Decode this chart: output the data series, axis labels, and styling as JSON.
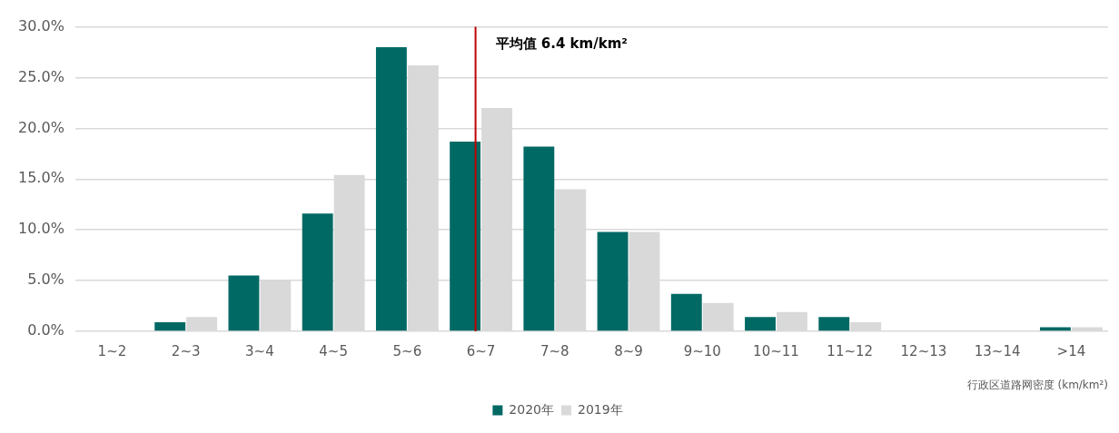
{
  "chart_data": {
    "type": "bar",
    "xlabel": "行政区道路网密度 (km/km²)",
    "categories": [
      "1~2",
      "2~3",
      "3~4",
      "4~5",
      "5~6",
      "6~7",
      "7~8",
      "8~9",
      "9~10",
      "10~11",
      "11~12",
      "12~13",
      "13~14",
      ">14"
    ],
    "series": [
      {
        "name": "2020年",
        "color": "#006964",
        "values": [
          0,
          0.9,
          5.5,
          11.6,
          28.0,
          18.7,
          18.2,
          9.8,
          3.7,
          1.4,
          1.4,
          0,
          0,
          0.4
        ]
      },
      {
        "name": "2019年",
        "color": "#d9d9d9",
        "values": [
          0,
          1.4,
          5.1,
          15.4,
          26.2,
          22.0,
          14.0,
          9.8,
          2.8,
          1.9,
          0.9,
          0,
          0,
          0.4
        ]
      }
    ],
    "ylim": [
      0,
      30
    ],
    "yticks": [
      {
        "value": 0,
        "label": "0.0%"
      },
      {
        "value": 5,
        "label": "5.0%"
      },
      {
        "value": 10,
        "label": "10.0%"
      },
      {
        "value": 15,
        "label": "15.0%"
      },
      {
        "value": 20,
        "label": "20.0%"
      },
      {
        "value": 25,
        "label": "25.0%"
      },
      {
        "value": 30,
        "label": "30.0%"
      }
    ],
    "grid": "y",
    "legend": "bottom",
    "ref_lines": [
      {
        "axis": "x",
        "value": "6~7",
        "label": "平均值 6.4 km/km²",
        "color": "#c00000"
      }
    ]
  }
}
